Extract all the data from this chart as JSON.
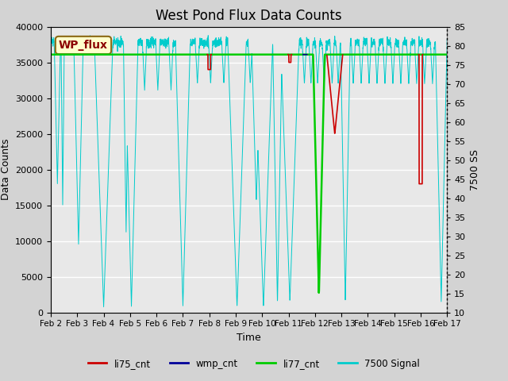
{
  "title": "West Pond Flux Data Counts",
  "xlabel": "Time",
  "ylabel": "Data Counts",
  "ylabel_right": "7500 SS",
  "ylim_left": [
    0,
    40000
  ],
  "ylim_right": [
    10,
    85
  ],
  "yticks_left": [
    0,
    5000,
    10000,
    15000,
    20000,
    25000,
    30000,
    35000,
    40000
  ],
  "yticks_right": [
    10,
    15,
    20,
    25,
    30,
    35,
    40,
    45,
    50,
    55,
    60,
    65,
    70,
    75,
    80,
    85
  ],
  "xtick_labels": [
    "Feb 2",
    "Feb 3",
    "Feb 4",
    "Feb 5",
    "Feb 6",
    "Feb 7",
    "Feb 8",
    "Feb 9",
    "Feb 10",
    "Feb 11",
    "Feb 12",
    "Feb 13",
    "Feb 14",
    "Feb 15",
    "Feb 16",
    "Feb 17"
  ],
  "legend_labels": [
    "li75_cnt",
    "wmp_cnt",
    "li77_cnt",
    "7500 Signal"
  ],
  "annotation_text": "WP_flux",
  "fig_bg": "#d3d3d3",
  "plot_bg": "#e8e8e8",
  "cyan_color": "#00cccc",
  "red_color": "#cc0000",
  "green_color": "#00cc00",
  "blue_color": "#000099",
  "title_fontsize": 12,
  "label_fontsize": 9,
  "tick_fontsize": 8
}
